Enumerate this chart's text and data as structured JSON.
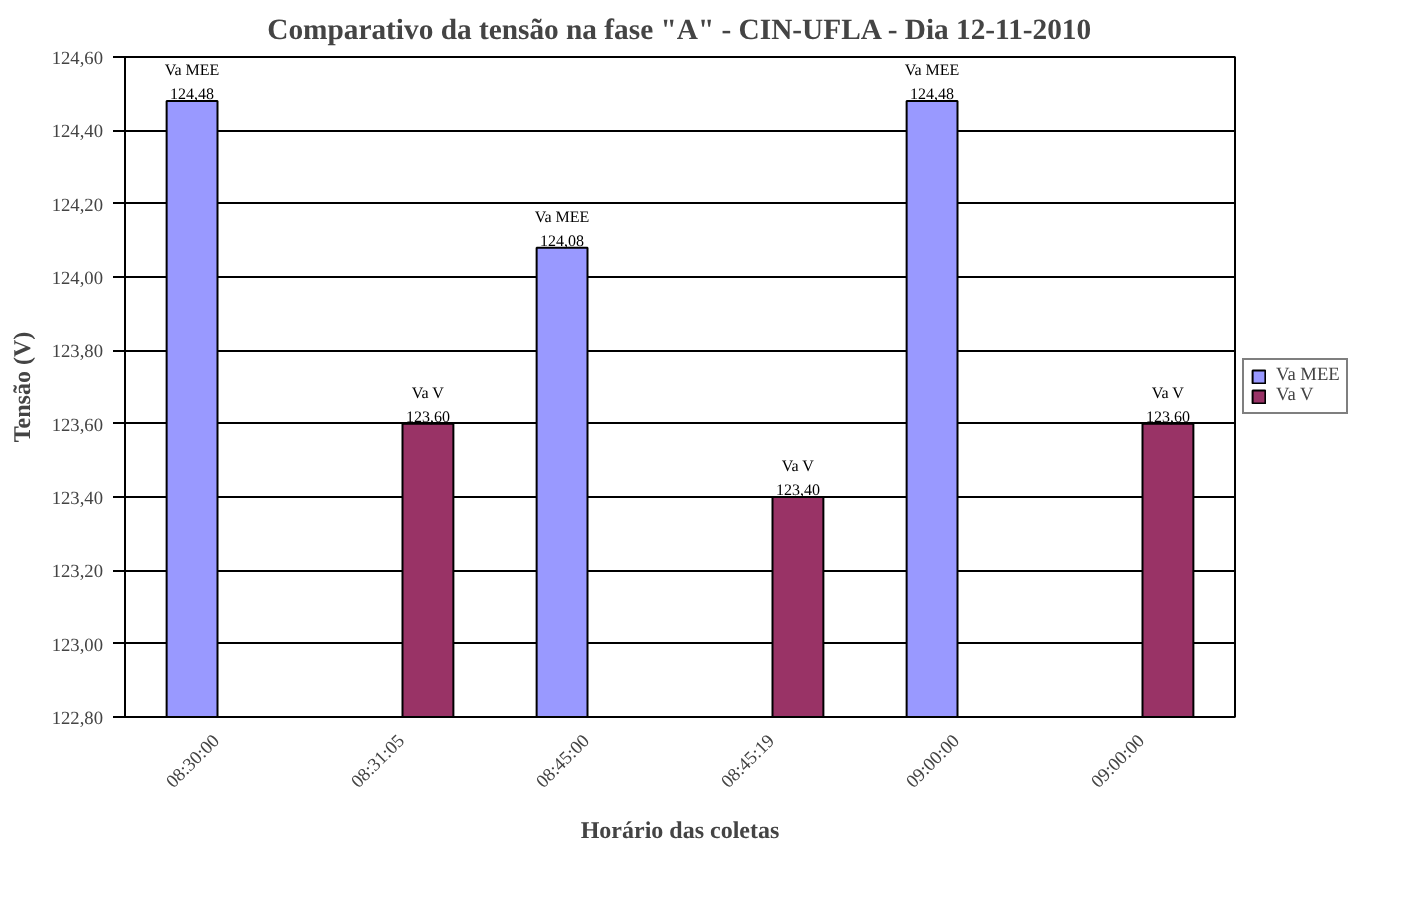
{
  "chart_data": {
    "type": "bar",
    "title": "Comparativo da tensão na fase \"A\" - CIN-UFLA - Dia 12-11-2010",
    "xlabel": "Horário das coletas",
    "ylabel": "Tensão (V)",
    "categories": [
      "08:30:00",
      "08:31:05",
      "08:45:00",
      "08:45:19",
      "09:00:00",
      "09:00:00"
    ],
    "series": [
      {
        "name": "Va MEE",
        "color": "#9999ff",
        "values": [
          124.48,
          null,
          124.08,
          null,
          124.48,
          null
        ],
        "value_labels": [
          "124,48",
          null,
          "124,08",
          null,
          "124,48",
          null
        ]
      },
      {
        "name": "Va V",
        "color": "#993366",
        "values": [
          null,
          123.6,
          null,
          123.4,
          null,
          123.6
        ],
        "value_labels": [
          null,
          "123,60",
          null,
          "123,40",
          null,
          "123,60"
        ]
      }
    ],
    "ylim": [
      122.8,
      124.6
    ],
    "yticks": [
      {
        "value": 122.8,
        "label": "122,80"
      },
      {
        "value": 123.0,
        "label": "123,00"
      },
      {
        "value": 123.2,
        "label": "123,20"
      },
      {
        "value": 123.4,
        "label": "123,40"
      },
      {
        "value": 123.6,
        "label": "123,60"
      },
      {
        "value": 123.8,
        "label": "123,80"
      },
      {
        "value": 124.0,
        "label": "124,00"
      },
      {
        "value": 124.2,
        "label": "124,20"
      },
      {
        "value": 124.4,
        "label": "124,40"
      },
      {
        "value": 124.6,
        "label": "124,60"
      }
    ],
    "grid": "y",
    "legend": "right"
  }
}
